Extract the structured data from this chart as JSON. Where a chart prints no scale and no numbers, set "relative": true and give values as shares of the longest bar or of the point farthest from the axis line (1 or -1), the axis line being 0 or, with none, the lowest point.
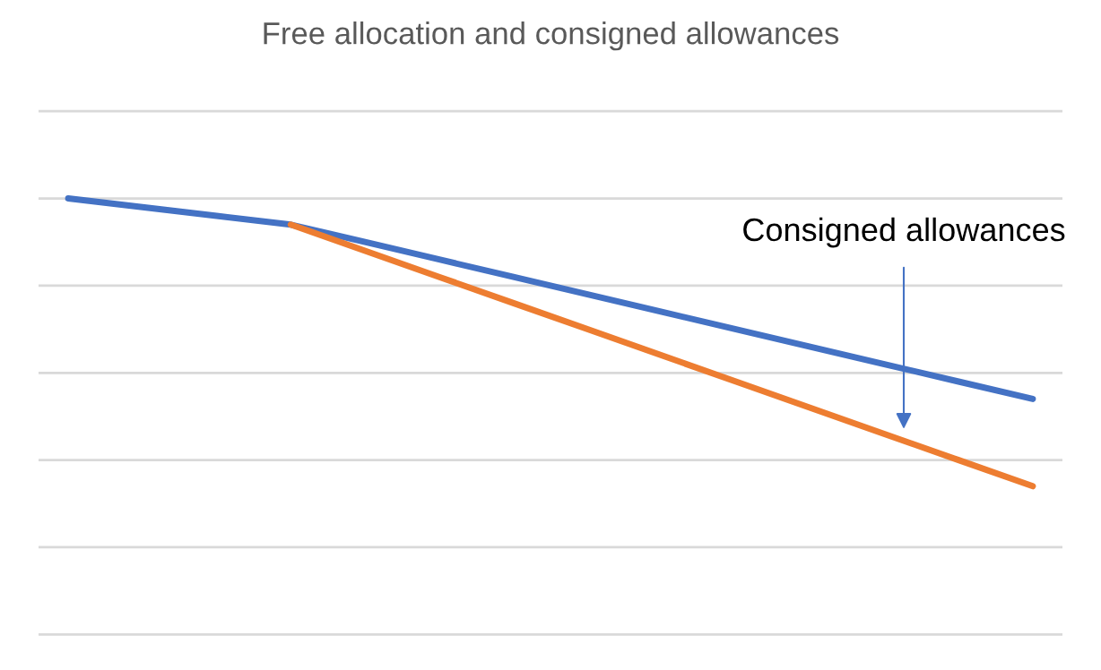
{
  "chart_data": {
    "type": "line",
    "title": "Free allocation and consigned allowances",
    "relative": true,
    "grid": "y",
    "marker": "none",
    "line_style": "solid",
    "categories": [
      null,
      null,
      null,
      null,
      null,
      null,
      null,
      null,
      null,
      null,
      null,
      null,
      null,
      null
    ],
    "series": [
      {
        "color": "#4472c4",
        "values": [
          1,
          0.98,
          0.96,
          0.94,
          0.9,
          0.86,
          0.82,
          0.78,
          0.74,
          0.7,
          0.66,
          0.62,
          0.58,
          0.54
        ]
      },
      {
        "color": "#ed7d31",
        "values": [
          null,
          null,
          null,
          0.94,
          0.88,
          0.82,
          0.76,
          0.7,
          0.64,
          0.58,
          0.52,
          0.46,
          0.4,
          0.34
        ]
      }
    ],
    "annotations": [
      "Consigned allowances"
    ]
  }
}
